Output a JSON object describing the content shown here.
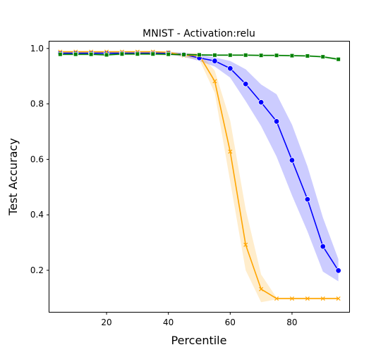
{
  "chart_data": {
    "type": "line",
    "title": "MNIST - Activation:relu",
    "xlabel": "Percentile",
    "ylabel": "Test Accuracy",
    "xlim": [
      1.5,
      98.5
    ],
    "ylim": [
      0.05,
      1.025
    ],
    "xticks": [
      20,
      40,
      60,
      80
    ],
    "yticks": [
      0.2,
      0.4,
      0.6,
      0.8,
      1.0
    ],
    "ytick_labels": [
      "0.2",
      "0.4",
      "0.6",
      "0.8",
      "1.0"
    ],
    "grid": false,
    "x": [
      5,
      10,
      15,
      20,
      25,
      30,
      35,
      40,
      45,
      50,
      55,
      60,
      65,
      70,
      75,
      80,
      85,
      90,
      95
    ],
    "series": [
      {
        "color": "#0000ff",
        "marker": "circle",
        "values": [
          0.983,
          0.983,
          0.983,
          0.983,
          0.983,
          0.983,
          0.983,
          0.983,
          0.978,
          0.966,
          0.955,
          0.928,
          0.872,
          0.806,
          0.737,
          0.597,
          0.456,
          0.286,
          0.199
        ],
        "lower": [
          0.978,
          0.978,
          0.978,
          0.978,
          0.978,
          0.978,
          0.978,
          0.978,
          0.97,
          0.955,
          0.935,
          0.895,
          0.81,
          0.72,
          0.61,
          0.47,
          0.34,
          0.195,
          0.16
        ],
        "upper": [
          0.987,
          0.987,
          0.987,
          0.987,
          0.987,
          0.987,
          0.987,
          0.987,
          0.985,
          0.978,
          0.968,
          0.955,
          0.925,
          0.87,
          0.835,
          0.725,
          0.575,
          0.39,
          0.24
        ]
      },
      {
        "color": "#ffa500",
        "marker": "x",
        "values": [
          0.988,
          0.988,
          0.988,
          0.988,
          0.988,
          0.988,
          0.988,
          0.986,
          0.975,
          0.975,
          0.882,
          0.628,
          0.292,
          0.132,
          0.098,
          0.098,
          0.098,
          0.098,
          0.098
        ],
        "lower": [
          0.985,
          0.985,
          0.985,
          0.985,
          0.985,
          0.985,
          0.985,
          0.982,
          0.968,
          0.96,
          0.84,
          0.52,
          0.2,
          0.085,
          0.095,
          0.095,
          0.095,
          0.095,
          0.095
        ],
        "upper": [
          0.991,
          0.991,
          0.991,
          0.991,
          0.991,
          0.991,
          0.991,
          0.99,
          0.982,
          0.985,
          0.92,
          0.74,
          0.42,
          0.185,
          0.101,
          0.101,
          0.101,
          0.101,
          0.101
        ]
      },
      {
        "color": "#008000",
        "marker": "square",
        "values": [
          0.979,
          0.979,
          0.979,
          0.977,
          0.98,
          0.98,
          0.98,
          0.979,
          0.978,
          0.977,
          0.976,
          0.976,
          0.976,
          0.975,
          0.975,
          0.974,
          0.973,
          0.97,
          0.961
        ],
        "lower": [
          0.975,
          0.975,
          0.975,
          0.973,
          0.976,
          0.976,
          0.976,
          0.975,
          0.974,
          0.974,
          0.973,
          0.973,
          0.973,
          0.972,
          0.972,
          0.971,
          0.97,
          0.967,
          0.957
        ],
        "upper": [
          0.983,
          0.983,
          0.983,
          0.981,
          0.984,
          0.984,
          0.984,
          0.983,
          0.982,
          0.98,
          0.979,
          0.979,
          0.979,
          0.978,
          0.978,
          0.977,
          0.976,
          0.973,
          0.965
        ]
      }
    ]
  }
}
